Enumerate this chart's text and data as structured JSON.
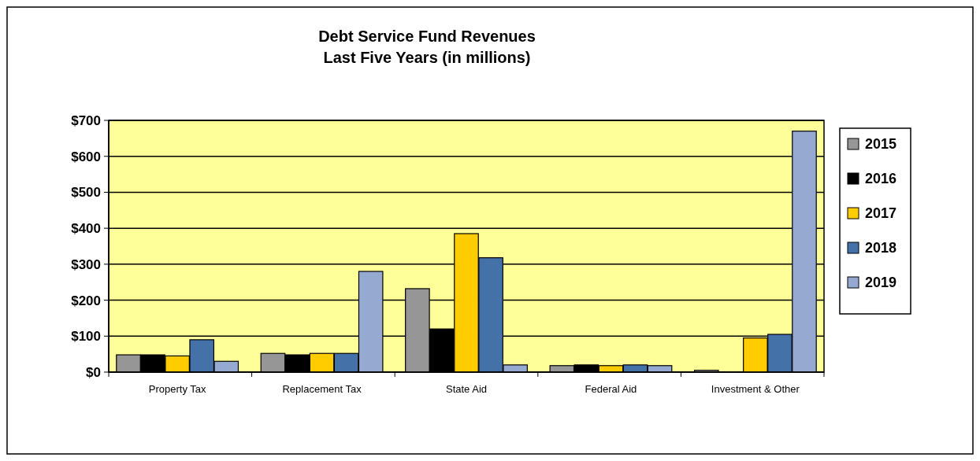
{
  "chart_data": {
    "type": "bar",
    "title": "Debt Service Fund Revenues",
    "subtitle": "Last Five Years (in millions)",
    "categories": [
      "Property Tax",
      "Replacement Tax",
      "State Aid",
      "Federal Aid",
      "Investment  & Other"
    ],
    "series": [
      {
        "name": "2015",
        "color": "#969696",
        "values": [
          48,
          52,
          232,
          18,
          5
        ]
      },
      {
        "name": "2016",
        "color": "#000000",
        "values": [
          48,
          48,
          120,
          20,
          null
        ]
      },
      {
        "name": "2017",
        "color": "#ffcc00",
        "values": [
          45,
          52,
          385,
          18,
          95
        ]
      },
      {
        "name": "2018",
        "color": "#4472a8",
        "values": [
          90,
          52,
          318,
          20,
          105
        ]
      },
      {
        "name": "2019",
        "color": "#95a9d1",
        "values": [
          30,
          280,
          20,
          18,
          670
        ]
      }
    ],
    "ylim": [
      0,
      700
    ],
    "yticks": [
      {
        "value": 0,
        "label": "$0"
      },
      {
        "value": 100,
        "label": "$100"
      },
      {
        "value": 200,
        "label": "$200"
      },
      {
        "value": 300,
        "label": "$300"
      },
      {
        "value": 400,
        "label": "$400"
      },
      {
        "value": 500,
        "label": "$500"
      },
      {
        "value": 600,
        "label": "$600"
      },
      {
        "value": 700,
        "label": "$700"
      }
    ],
    "grid": "y",
    "legend": "right"
  }
}
